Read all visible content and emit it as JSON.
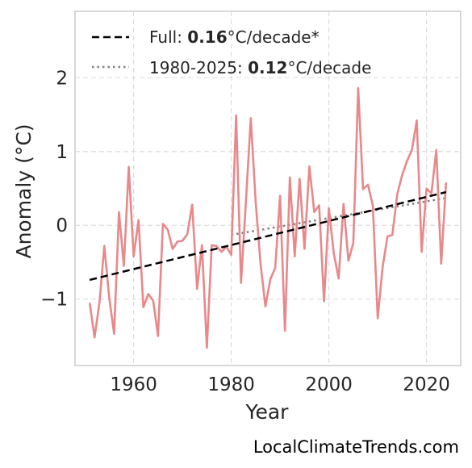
{
  "chart_data": {
    "type": "line",
    "xlabel": "Year",
    "ylabel": "Anomaly (°C)",
    "xlim": [
      1948,
      2027
    ],
    "ylim": [
      -1.9,
      2.9
    ],
    "xticks": [
      1960,
      1980,
      2000,
      2020
    ],
    "xtick_labels": [
      "1960",
      "1980",
      "2000",
      "2020"
    ],
    "yticks": [
      -1,
      0,
      1,
      2
    ],
    "ytick_labels": [
      "−1",
      "0",
      "1",
      "2"
    ],
    "grid": true,
    "legend_position": "top-left",
    "colors": {
      "series": "#e8888a",
      "full_trend": "#000000",
      "recent_trend": "#808080"
    },
    "series": [
      {
        "x": [
          1951,
          1952,
          1953,
          1954,
          1955,
          1956,
          1957,
          1958,
          1959,
          1960,
          1961,
          1962,
          1963,
          1964,
          1965,
          1966,
          1967,
          1968,
          1969,
          1970,
          1971,
          1972,
          1973,
          1974,
          1975,
          1976,
          1977,
          1978,
          1979,
          1980,
          1981,
          1982,
          1983,
          1984,
          1985,
          1986,
          1987,
          1988,
          1989,
          1990,
          1991,
          1992,
          1993,
          1994,
          1995,
          1996,
          1997,
          1998,
          1999,
          2000,
          2001,
          2002,
          2003,
          2004,
          2005,
          2006,
          2007,
          2008,
          2009,
          2010,
          2011,
          2012,
          2013,
          2014,
          2015,
          2016,
          2017,
          2018,
          2019,
          2020,
          2021,
          2022,
          2023,
          2024
        ],
        "values": [
          -1.05,
          -1.52,
          -1.05,
          -0.28,
          -0.98,
          -1.47,
          0.18,
          -0.55,
          0.79,
          -0.42,
          0.07,
          -1.11,
          -0.93,
          -1.02,
          -1.5,
          0.02,
          -0.06,
          -0.32,
          -0.22,
          -0.21,
          -0.12,
          0.28,
          -0.86,
          -0.27,
          -1.66,
          -0.27,
          -0.28,
          -0.36,
          -0.29,
          -0.4,
          1.49,
          -0.78,
          0.32,
          1.45,
          0.32,
          -0.52,
          -1.1,
          -0.73,
          -0.58,
          0.4,
          -1.43,
          0.65,
          -0.42,
          0.63,
          -0.32,
          0.8,
          0.18,
          0.27,
          -1.03,
          0.23,
          -0.38,
          -0.72,
          0.29,
          -0.48,
          -0.24,
          1.86,
          0.49,
          0.55,
          0.27,
          -1.26,
          -0.57,
          -0.15,
          -0.13,
          0.42,
          0.68,
          0.87,
          1.02,
          1.42,
          -0.36,
          0.5,
          0.43,
          1.02,
          -0.52,
          0.58
        ]
      }
    ],
    "trend_full": {
      "x": [
        1951,
        2024
      ],
      "y": [
        -0.74,
        0.45
      ]
    },
    "trend_recent": {
      "x": [
        1980,
        2024
      ],
      "y": [
        -0.13,
        0.37
      ]
    },
    "legend": [
      {
        "style": "dashed",
        "prefix": "Full: ",
        "value": "0.16",
        "suffix": "°C/decade*"
      },
      {
        "style": "dotted",
        "prefix": "1980-2025: ",
        "value": "0.12",
        "suffix": "°C/decade"
      }
    ]
  },
  "footer": {
    "text": "LocalClimateTrends.com"
  }
}
